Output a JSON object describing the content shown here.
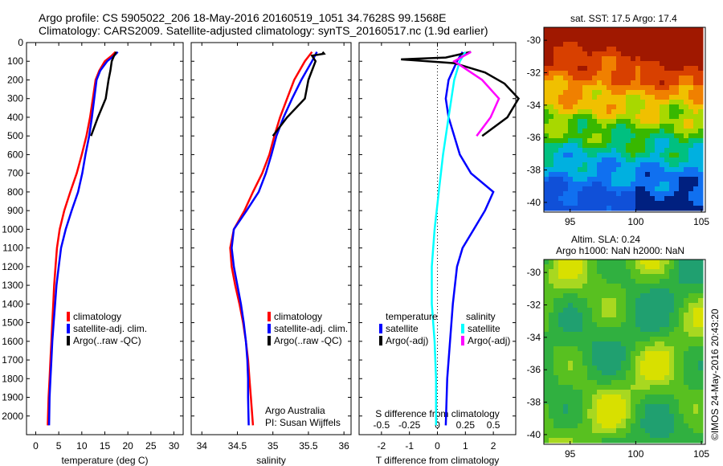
{
  "header": {
    "line1": "Argo profile: CS 5905022_206 18-May-2016 20160519_1051 34.7628S 99.1568E",
    "line2": "Climatology: CARS2009. Satellite-adjusted climatology: synTS_20160517.nc (1.9d earlier)"
  },
  "colors": {
    "climatology": "#ff0000",
    "satellite": "#0000ff",
    "argo": "#000000",
    "satellite_s": "#00ffff",
    "argo_s": "#ff00ff"
  },
  "chart_data": [
    {
      "type": "line",
      "xlabel": "temperature (deg C)",
      "xticks": [
        0,
        5,
        10,
        15,
        20,
        25,
        30
      ],
      "xlim": [
        -2,
        32
      ],
      "ylim": [
        2100,
        0
      ],
      "yticks": [
        0,
        100,
        200,
        300,
        400,
        500,
        600,
        700,
        800,
        900,
        1000,
        1100,
        1200,
        1300,
        1400,
        1500,
        1600,
        1700,
        1800,
        1900,
        2000
      ],
      "legend": [
        "climatology",
        "satellite-adj. clim.",
        "Argo(..raw -QC)"
      ],
      "series": [
        {
          "name": "climatology",
          "color": "#ff0000",
          "points": [
            [
              17.3,
              50
            ],
            [
              16.5,
              70
            ],
            [
              15,
              100
            ],
            [
              13.8,
              150
            ],
            [
              13,
              200
            ],
            [
              12.4,
              300
            ],
            [
              11.8,
              400
            ],
            [
              11,
              500
            ],
            [
              10,
              600
            ],
            [
              8.9,
              700
            ],
            [
              7.5,
              800
            ],
            [
              6.2,
              900
            ],
            [
              5.2,
              1000
            ],
            [
              4.6,
              1100
            ],
            [
              4.3,
              1200
            ],
            [
              4,
              1300
            ],
            [
              3.8,
              1400
            ],
            [
              3.6,
              1500
            ],
            [
              3.4,
              1600
            ],
            [
              3.2,
              1700
            ],
            [
              3,
              1800
            ],
            [
              2.8,
              1900
            ],
            [
              2.6,
              2050
            ]
          ]
        },
        {
          "name": "satellite-adj. clim.",
          "color": "#0000ff",
          "points": [
            [
              17.8,
              50
            ],
            [
              17,
              70
            ],
            [
              15.5,
              100
            ],
            [
              14,
              150
            ],
            [
              13.2,
              200
            ],
            [
              12.7,
              300
            ],
            [
              12.2,
              400
            ],
            [
              11.6,
              500
            ],
            [
              10.8,
              600
            ],
            [
              10.1,
              700
            ],
            [
              9.2,
              800
            ],
            [
              7.8,
              900
            ],
            [
              6.5,
              1000
            ],
            [
              5.5,
              1100
            ],
            [
              5,
              1200
            ],
            [
              4.5,
              1300
            ],
            [
              4.2,
              1400
            ],
            [
              3.9,
              1500
            ],
            [
              3.6,
              1600
            ],
            [
              3.4,
              1700
            ],
            [
              3.2,
              1800
            ],
            [
              3,
              1900
            ],
            [
              2.9,
              2050
            ]
          ]
        },
        {
          "name": "Argo(..raw -QC)",
          "color": "#000000",
          "points": [
            [
              17.5,
              50
            ],
            [
              17,
              70
            ],
            [
              16.5,
              100
            ],
            [
              16.2,
              150
            ],
            [
              15.8,
              200
            ],
            [
              15.2,
              300
            ],
            [
              13.5,
              400
            ],
            [
              12,
              500
            ]
          ]
        }
      ]
    },
    {
      "type": "line",
      "xlabel": "salinity",
      "xticks": [
        34,
        34.5,
        35,
        35.5,
        36
      ],
      "xlim": [
        33.85,
        36.1
      ],
      "ylim": [
        2100,
        0
      ],
      "legend": [
        "climatology",
        "satellite-adj. clim.",
        "Argo(..raw -QC)"
      ],
      "annotation": [
        "Argo Australia",
        "PI: Susan Wijffels"
      ],
      "series": [
        {
          "name": "climatology",
          "color": "#ff0000",
          "points": [
            [
              35.55,
              50
            ],
            [
              35.45,
              100
            ],
            [
              35.3,
              200
            ],
            [
              35.2,
              300
            ],
            [
              35.1,
              400
            ],
            [
              35.02,
              500
            ],
            [
              34.95,
              600
            ],
            [
              34.85,
              700
            ],
            [
              34.72,
              800
            ],
            [
              34.6,
              900
            ],
            [
              34.45,
              1000
            ],
            [
              34.4,
              1100
            ],
            [
              34.42,
              1200
            ],
            [
              34.47,
              1300
            ],
            [
              34.53,
              1400
            ],
            [
              34.58,
              1500
            ],
            [
              34.62,
              1600
            ],
            [
              34.65,
              1700
            ],
            [
              34.67,
              1800
            ],
            [
              34.69,
              1900
            ],
            [
              34.72,
              2050
            ]
          ]
        },
        {
          "name": "satellite-adj. clim.",
          "color": "#0000ff",
          "points": [
            [
              35.62,
              50
            ],
            [
              35.55,
              100
            ],
            [
              35.4,
              200
            ],
            [
              35.27,
              300
            ],
            [
              35.15,
              400
            ],
            [
              35.05,
              500
            ],
            [
              34.98,
              600
            ],
            [
              34.9,
              700
            ],
            [
              34.8,
              800
            ],
            [
              34.63,
              900
            ],
            [
              34.45,
              1000
            ],
            [
              34.42,
              1100
            ],
            [
              34.45,
              1200
            ],
            [
              34.5,
              1300
            ],
            [
              34.55,
              1400
            ],
            [
              34.59,
              1500
            ],
            [
              34.62,
              1600
            ],
            [
              34.64,
              1700
            ],
            [
              34.65,
              1800
            ],
            [
              34.65,
              1900
            ],
            [
              34.66,
              2050
            ]
          ]
        },
        {
          "name": "Argo(..raw -QC)",
          "color": "#000000",
          "points": [
            [
              35.7,
              50
            ],
            [
              35.72,
              60
            ],
            [
              35.55,
              70
            ],
            [
              35.6,
              100
            ],
            [
              35.5,
              200
            ],
            [
              35.45,
              300
            ],
            [
              35.2,
              400
            ],
            [
              35.0,
              500
            ]
          ]
        }
      ]
    },
    {
      "type": "line",
      "xlabel": "T difference from climatology",
      "xlabel2": "S difference from climatology",
      "xticks": [
        -2,
        -1,
        0,
        1,
        2
      ],
      "xticks_s": [
        -0.5,
        -0.25,
        0,
        0.25,
        0.5
      ],
      "xlim": [
        -2.8,
        2.8
      ],
      "ylim": [
        2100,
        0
      ],
      "legend_title_t": "temperature",
      "legend_title_s": "salinity",
      "legend_t": [
        "satellite",
        "Argo(-adj)"
      ],
      "legend_s": [
        "satellite",
        "Argo(-adj)"
      ],
      "series": [
        {
          "name": "temperature satellite",
          "color": "#0000ff",
          "points": [
            [
              0.9,
              50
            ],
            [
              0.7,
              100
            ],
            [
              0.4,
              200
            ],
            [
              0.3,
              300
            ],
            [
              0.4,
              400
            ],
            [
              0.6,
              500
            ],
            [
              0.8,
              600
            ],
            [
              1.2,
              700
            ],
            [
              2.0,
              800
            ],
            [
              1.7,
              900
            ],
            [
              1.3,
              1000
            ],
            [
              0.9,
              1100
            ],
            [
              0.7,
              1200
            ],
            [
              0.55,
              1400
            ],
            [
              0.45,
              1600
            ],
            [
              0.35,
              1800
            ],
            [
              0.3,
              2050
            ]
          ]
        },
        {
          "name": "temperature Argo(-adj)",
          "color": "#000000",
          "points": [
            [
              1.2,
              50
            ],
            [
              0.9,
              60
            ],
            [
              0.3,
              80
            ],
            [
              -1.3,
              90
            ],
            [
              0.6,
              110
            ],
            [
              1.7,
              160
            ],
            [
              2.4,
              220
            ],
            [
              2.9,
              300
            ],
            [
              2.5,
              400
            ],
            [
              1.6,
              500
            ]
          ]
        },
        {
          "name": "salinity satellite",
          "color": "#00ffff",
          "points": [
            [
              1,
              50
            ],
            [
              0.8,
              100
            ],
            [
              0.6,
              200
            ],
            [
              0.4,
              400
            ],
            [
              0.2,
              600
            ],
            [
              0.05,
              800
            ],
            [
              -0.1,
              1000
            ],
            [
              -0.2,
              1200
            ],
            [
              -0.2,
              1400
            ],
            [
              -0.1,
              1600
            ],
            [
              -0.05,
              1800
            ],
            [
              -0.05,
              2050
            ]
          ]
        },
        {
          "name": "salinity Argo(-adj)",
          "color": "#ff00ff",
          "points": [
            [
              1.2,
              50
            ],
            [
              0.6,
              100
            ],
            [
              1.6,
              200
            ],
            [
              2.2,
              300
            ],
            [
              1.9,
              400
            ],
            [
              1.4,
              500
            ]
          ]
        }
      ]
    }
  ],
  "maps": [
    {
      "title": "sat. SST: 17.5 Argo: 17.4",
      "yticks": [
        -30,
        -32,
        -34,
        -36,
        -38,
        -40
      ],
      "xticks": [
        95,
        100,
        105
      ]
    },
    {
      "title_line1": "Altim. SLA: 0.24",
      "title_line2": "Argo h1000: NaN h2000: NaN",
      "yticks": [
        -30,
        -32,
        -34,
        -36,
        -38,
        -40
      ],
      "xticks": [
        95,
        100,
        105
      ]
    }
  ],
  "watermark": "©IMOS 24-May-2016 20:43:20"
}
